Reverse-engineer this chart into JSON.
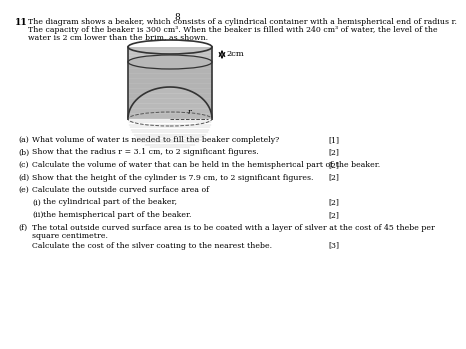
{
  "question_number": "11",
  "intro_line1": "The diagram shows a beaker, which consists of a cylindrical container with a hemispherical end of radius r.",
  "intro_line2": "The capacity of the beaker is 300 cm³. When the beaker is filled with 240 cm³ of water, the level of the",
  "intro_line3": "water is 2 cm lower than the brim, as shown.",
  "diagram_label_2cm": "2cm",
  "diagram_label_r": "r",
  "parts": [
    {
      "label": "(a)",
      "text": "What volume of water is needed to fill the beaker completely?",
      "marks": "[1]",
      "indent": 0
    },
    {
      "label": "(b)",
      "text": "Show that the radius r = 3.1 cm, to 2 significant figures.",
      "marks": "[2]",
      "indent": 0
    },
    {
      "label": "(c)",
      "text": "Calculate the volume of water that can be held in the hemispherical part of the beaker.",
      "marks": "[2]",
      "indent": 0
    },
    {
      "label": "(d)",
      "text": "Show that the height of the cylinder is 7.9 cm, to 2 significant figures.",
      "marks": "[2]",
      "indent": 0
    },
    {
      "label": "(e)",
      "text": "Calculate the outside curved surface area of",
      "marks": "",
      "indent": 0
    },
    {
      "label": "(i)",
      "text": "the cylindrical part of the beaker,",
      "marks": "[2]",
      "indent": 1
    },
    {
      "label": "(ii)",
      "text": "the hemispherical part of the beaker.",
      "marks": "[2]",
      "indent": 1
    },
    {
      "label": "(f)",
      "text_lines": [
        "The total outside curved surface area is to be coated with a layer of silver at the cost of 45 thebe per",
        "square centimetre.",
        "Calculate the cost of the silver coating to the nearest thebe."
      ],
      "marks": "[3]",
      "indent": 0
    }
  ],
  "background_color": "#ffffff",
  "text_color": "#000000",
  "page_number": "8"
}
